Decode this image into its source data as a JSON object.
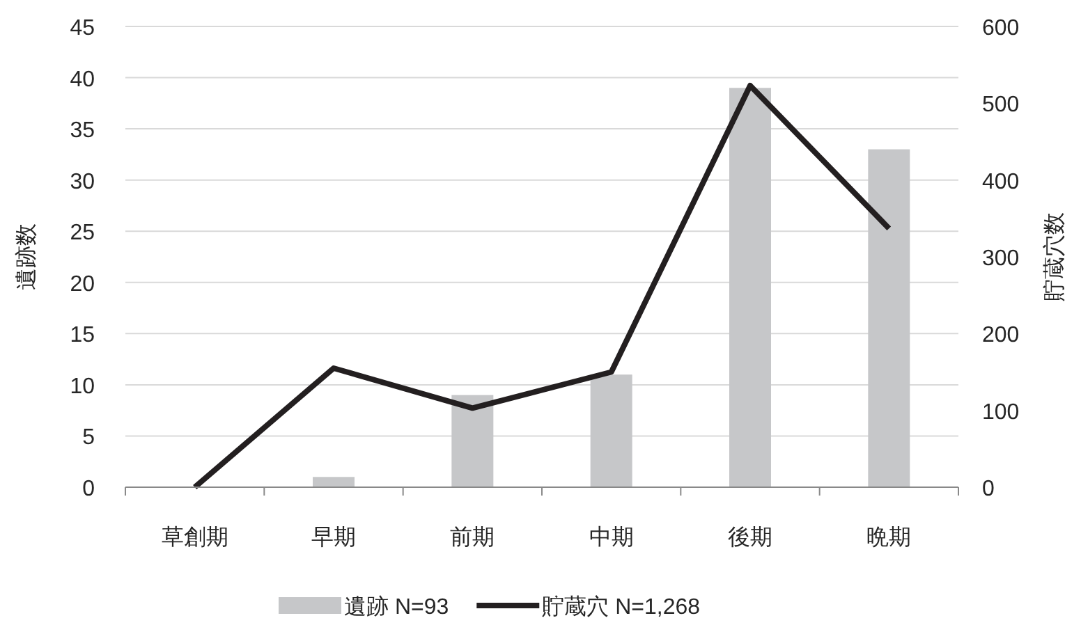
{
  "chart_data": {
    "type": "bar",
    "categories": [
      "草創期",
      "早期",
      "前期",
      "中期",
      "後期",
      "晩期"
    ],
    "ylabel": "遺跡数",
    "y2label": "貯蔵穴数",
    "ylim": [
      0,
      45
    ],
    "yticks": [
      0,
      5,
      10,
      15,
      20,
      25,
      30,
      35,
      40,
      45
    ],
    "y2lim": [
      0,
      600
    ],
    "y2ticks": [
      0,
      100,
      200,
      300,
      400,
      500,
      600
    ],
    "grid": "y",
    "legend": "bottom",
    "series": [
      {
        "name": "遺跡 N=93",
        "color": "#c6c7c9",
        "values": [
          0,
          1,
          9,
          11,
          39,
          33
        ]
      },
      {
        "name": "貯蔵穴 N=1,268",
        "type": "line",
        "axis": "y2",
        "color": "#231f20",
        "values": [
          0,
          155,
          103,
          150,
          523,
          337
        ]
      }
    ]
  }
}
